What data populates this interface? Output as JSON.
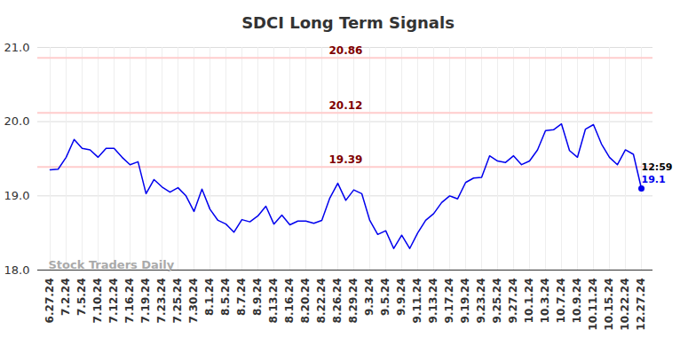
{
  "chart_data": {
    "type": "line",
    "title": "SDCI Long Term Signals",
    "categories": [
      "6.27.24",
      null,
      "7.2.24",
      null,
      "7.5.24",
      null,
      "7.10.24",
      null,
      "7.12.24",
      null,
      "7.16.24",
      null,
      "7.19.24",
      null,
      "7.23.24",
      null,
      "7.25.24",
      null,
      "7.30.24",
      null,
      "8.1.24",
      null,
      "8.5.24",
      null,
      "8.7.24",
      null,
      "8.9.24",
      null,
      "8.13.24",
      null,
      "8.16.24",
      null,
      "8.20.24",
      null,
      "8.22.24",
      null,
      "8.26.24",
      null,
      "8.29.24",
      null,
      "9.3.24",
      null,
      "9.5.24",
      null,
      "9.9.24",
      null,
      "9.11.24",
      null,
      "9.13.24",
      null,
      "9.17.24",
      null,
      "9.19.24",
      null,
      "9.23.24",
      null,
      "9.25.24",
      null,
      "9.27.24",
      null,
      "10.1.24",
      null,
      "10.3.24",
      null,
      "10.7.24",
      null,
      "10.9.24",
      null,
      "10.11.24",
      null,
      "10.15.24",
      null,
      "10.22.24",
      null,
      "12.27.24"
    ],
    "values": [
      19.35,
      19.36,
      19.52,
      19.76,
      19.64,
      19.62,
      19.52,
      19.64,
      19.64,
      19.52,
      19.42,
      19.46,
      19.03,
      19.22,
      19.12,
      19.05,
      19.11,
      19.0,
      18.79,
      19.09,
      18.82,
      18.67,
      18.62,
      18.51,
      18.68,
      18.65,
      18.73,
      18.86,
      18.62,
      18.74,
      18.61,
      18.66,
      18.66,
      18.63,
      18.67,
      18.97,
      19.17,
      18.94,
      19.08,
      19.03,
      18.67,
      18.48,
      18.53,
      18.29,
      18.47,
      18.29,
      18.5,
      18.67,
      18.76,
      18.91,
      19.0,
      18.96,
      19.18,
      19.24,
      19.25,
      19.54,
      19.47,
      19.45,
      19.54,
      19.42,
      19.47,
      19.62,
      19.88,
      19.89,
      19.97,
      19.61,
      19.52,
      19.9,
      19.96,
      19.7,
      19.52,
      19.42,
      19.62,
      19.56,
      19.1
    ],
    "color": "#0000ee",
    "ylim": [
      18,
      21
    ],
    "yticks": [
      18,
      19,
      20,
      21
    ],
    "grid": true,
    "signal_levels": [
      20.86,
      20.12,
      19.39
    ],
    "signal_color": "#ffcccc",
    "signal_label_color": "#800000",
    "last_time": "12:59",
    "last_price": {
      "value": 19.1,
      "label": "19.1"
    },
    "watermark": "Stock Traders Daily"
  }
}
